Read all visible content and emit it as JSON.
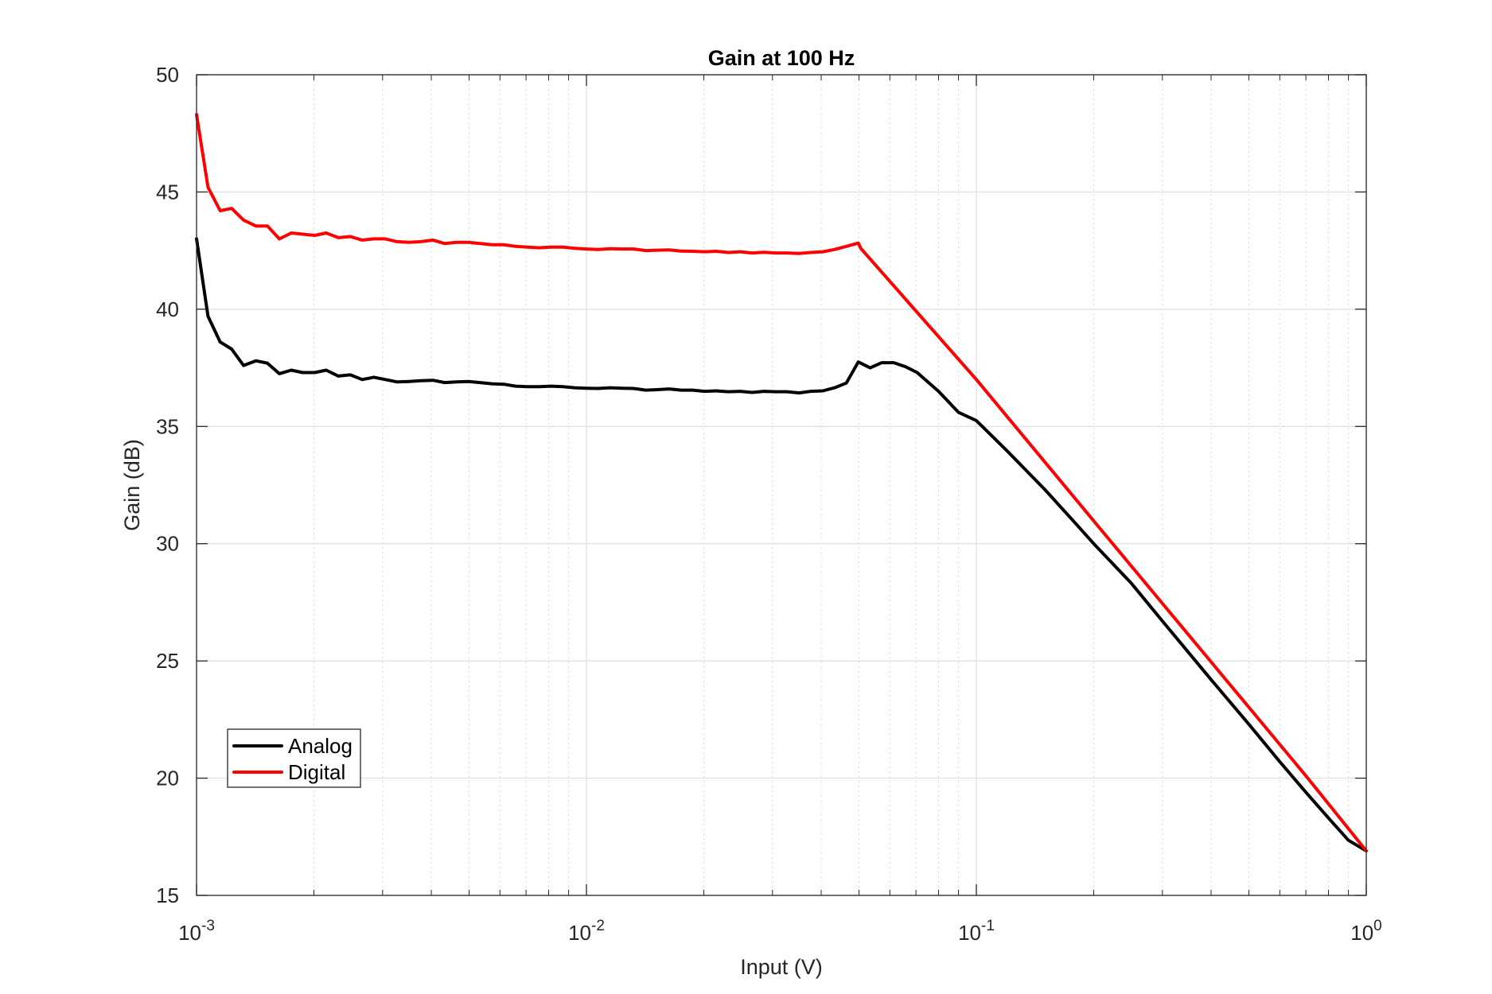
{
  "chart_data": {
    "type": "line",
    "title": "Gain at 100 Hz",
    "xlabel": "Input (V)",
    "ylabel": "Gain (dB)",
    "xscale": "log",
    "xlim": [
      0.001,
      1
    ],
    "ylim": [
      15,
      50
    ],
    "grid": true,
    "minor_grid": true,
    "legend_position": "bottom-left",
    "x_tick_labels": [
      {
        "base": "10",
        "exp": "-3",
        "value": 0.001
      },
      {
        "base": "10",
        "exp": "-2",
        "value": 0.01
      },
      {
        "base": "10",
        "exp": "-1",
        "value": 0.1
      },
      {
        "base": "10",
        "exp": "0",
        "value": 1
      }
    ],
    "y_ticks": [
      15,
      20,
      25,
      30,
      35,
      40,
      45,
      50
    ],
    "series": [
      {
        "name": "Analog",
        "color": "#000000",
        "x": [
          0.001,
          0.00107,
          0.00115,
          0.00123,
          0.00132,
          0.00142,
          0.00152,
          0.00163,
          0.00175,
          0.00187,
          0.00201,
          0.00215,
          0.00231,
          0.00248,
          0.00266,
          0.00285,
          0.00305,
          0.00327,
          0.00351,
          0.00376,
          0.00404,
          0.00433,
          0.00464,
          0.00498,
          0.00534,
          0.00572,
          0.00614,
          0.00658,
          0.00705,
          0.00756,
          0.00811,
          0.0087,
          0.00933,
          0.01,
          0.0107,
          0.0115,
          0.0123,
          0.0132,
          0.0142,
          0.0152,
          0.0163,
          0.0175,
          0.0187,
          0.0201,
          0.0215,
          0.0231,
          0.0248,
          0.0266,
          0.0285,
          0.0305,
          0.0327,
          0.0351,
          0.0376,
          0.0404,
          0.0433,
          0.0464,
          0.0498,
          0.0534,
          0.0572,
          0.0614,
          0.0658,
          0.0705,
          0.08,
          0.09,
          0.1,
          0.12,
          0.15,
          0.18,
          0.2,
          0.25,
          0.3,
          0.4,
          0.5,
          0.6,
          0.7,
          0.8,
          0.9,
          1.0
        ],
        "y": [
          43.0,
          39.7,
          38.6,
          38.3,
          37.6,
          37.8,
          37.7,
          37.25,
          37.4,
          37.3,
          37.3,
          37.4,
          37.15,
          37.2,
          37.0,
          37.1,
          37.0,
          36.9,
          36.92,
          36.95,
          36.97,
          36.87,
          36.9,
          36.92,
          36.87,
          36.82,
          36.8,
          36.72,
          36.7,
          36.7,
          36.72,
          36.7,
          36.65,
          36.63,
          36.62,
          36.65,
          36.63,
          36.62,
          36.55,
          36.57,
          36.6,
          36.55,
          36.55,
          36.5,
          36.52,
          36.48,
          36.5,
          36.45,
          36.5,
          36.48,
          36.48,
          36.43,
          36.5,
          36.52,
          36.65,
          36.85,
          37.75,
          37.5,
          37.72,
          37.72,
          37.55,
          37.3,
          36.5,
          35.6,
          35.25,
          33.95,
          32.3,
          30.85,
          30.0,
          28.3,
          26.7,
          24.2,
          22.3,
          20.7,
          19.4,
          18.3,
          17.35,
          16.9
        ]
      },
      {
        "name": "Digital",
        "color": "#ff0000",
        "x": [
          0.001,
          0.00107,
          0.00115,
          0.00123,
          0.00132,
          0.00142,
          0.00152,
          0.00163,
          0.00175,
          0.00187,
          0.00201,
          0.00215,
          0.00231,
          0.00248,
          0.00266,
          0.00285,
          0.00305,
          0.00327,
          0.00351,
          0.00376,
          0.00404,
          0.00433,
          0.00464,
          0.00498,
          0.00534,
          0.00572,
          0.00614,
          0.00658,
          0.00705,
          0.00756,
          0.00811,
          0.0087,
          0.00933,
          0.01,
          0.0107,
          0.0115,
          0.0123,
          0.0132,
          0.0142,
          0.0152,
          0.0163,
          0.0175,
          0.0187,
          0.0201,
          0.0215,
          0.0231,
          0.0248,
          0.0266,
          0.0285,
          0.0305,
          0.0327,
          0.0351,
          0.0376,
          0.0404,
          0.0433,
          0.0464,
          0.0498,
          0.0505,
          0.1,
          0.2,
          0.3,
          0.5,
          0.7,
          1.0
        ],
        "y": [
          48.3,
          45.2,
          44.2,
          44.3,
          43.8,
          43.55,
          43.55,
          43.0,
          43.25,
          43.2,
          43.15,
          43.25,
          43.05,
          43.1,
          42.95,
          43.0,
          43.0,
          42.88,
          42.85,
          42.88,
          42.95,
          42.8,
          42.85,
          42.85,
          42.8,
          42.75,
          42.75,
          42.68,
          42.65,
          42.62,
          42.65,
          42.65,
          42.6,
          42.57,
          42.55,
          42.58,
          42.57,
          42.57,
          42.5,
          42.52,
          42.53,
          42.48,
          42.47,
          42.45,
          42.47,
          42.42,
          42.45,
          42.4,
          42.43,
          42.4,
          42.4,
          42.38,
          42.42,
          42.45,
          42.55,
          42.68,
          42.82,
          42.6,
          37.0,
          30.97,
          27.45,
          23.02,
          20.1,
          16.9
        ]
      }
    ]
  }
}
